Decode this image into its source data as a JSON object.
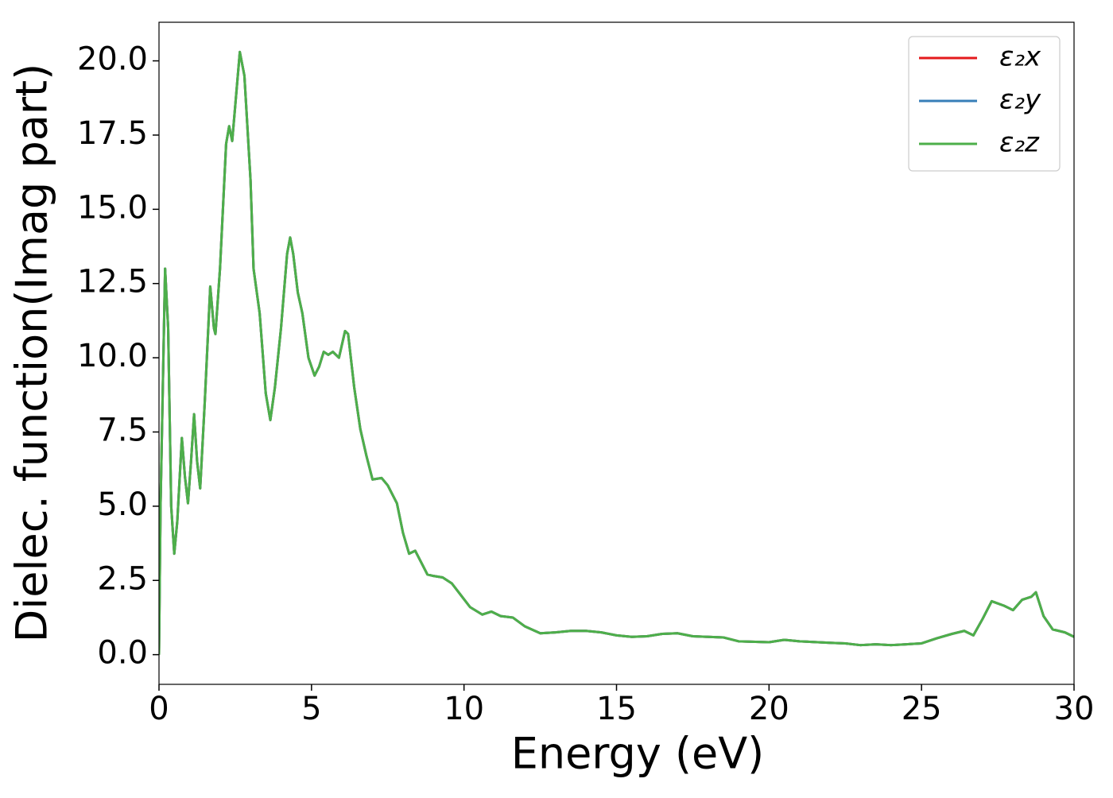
{
  "chart_data": {
    "type": "line",
    "xlabel": "Energy (eV)",
    "ylabel": "Dielec. function(Imag part)",
    "x": [
      0,
      0.05,
      0.2,
      0.3,
      0.4,
      0.5,
      0.6,
      0.75,
      0.85,
      0.95,
      1.05,
      1.15,
      1.25,
      1.35,
      1.5,
      1.68,
      1.8,
      1.85,
      2.0,
      2.2,
      2.3,
      2.4,
      2.5,
      2.65,
      2.8,
      3.0,
      3.1,
      3.3,
      3.5,
      3.65,
      3.8,
      4.0,
      4.2,
      4.3,
      4.4,
      4.55,
      4.7,
      4.9,
      5.1,
      5.25,
      5.4,
      5.55,
      5.7,
      5.9,
      6.1,
      6.2,
      6.4,
      6.6,
      6.8,
      7.0,
      7.3,
      7.5,
      7.8,
      8.0,
      8.2,
      8.4,
      8.6,
      8.8,
      9.0,
      9.3,
      9.6,
      9.9,
      10.2,
      10.6,
      10.9,
      11.2,
      11.6,
      12.0,
      12.5,
      13.0,
      13.5,
      14.0,
      14.5,
      15.0,
      15.5,
      16.0,
      16.5,
      17.0,
      17.5,
      18.0,
      18.5,
      19.0,
      20.0,
      20.5,
      21.0,
      22.0,
      22.5,
      23.0,
      23.5,
      24.0,
      24.5,
      25.0,
      25.5,
      26.0,
      26.4,
      26.7,
      27.0,
      27.3,
      27.7,
      28.0,
      28.3,
      28.6,
      28.75,
      29.0,
      29.3,
      29.7,
      30.0
    ],
    "series": [
      {
        "name": "ε₂x",
        "color": "#e41a1c",
        "values": [
          0,
          5,
          13.0,
          11,
          5,
          3.4,
          4.5,
          7.3,
          6,
          5.1,
          6.5,
          8.1,
          6.5,
          5.6,
          8.5,
          12.4,
          11,
          10.8,
          13,
          17.2,
          17.8,
          17.3,
          18.5,
          20.3,
          19.5,
          16,
          13,
          11.5,
          8.8,
          7.9,
          9,
          11,
          13.5,
          14.05,
          13.5,
          12.2,
          11.5,
          10.0,
          9.4,
          9.7,
          10.2,
          10.1,
          10.2,
          10.0,
          10.9,
          10.8,
          9.0,
          7.6,
          6.7,
          5.9,
          5.95,
          5.7,
          5.1,
          4.1,
          3.4,
          3.5,
          3.1,
          2.7,
          2.65,
          2.6,
          2.4,
          2.0,
          1.6,
          1.35,
          1.45,
          1.3,
          1.25,
          0.95,
          0.72,
          0.75,
          0.8,
          0.8,
          0.75,
          0.65,
          0.6,
          0.62,
          0.7,
          0.72,
          0.62,
          0.6,
          0.58,
          0.45,
          0.42,
          0.5,
          0.45,
          0.4,
          0.38,
          0.32,
          0.35,
          0.32,
          0.35,
          0.38,
          0.55,
          0.7,
          0.8,
          0.65,
          1.2,
          1.8,
          1.65,
          1.5,
          1.85,
          1.95,
          2.1,
          1.3,
          0.85,
          0.75,
          0.6
        ]
      },
      {
        "name": "ε₂y",
        "color": "#377eb8",
        "values": [
          0,
          5,
          13.0,
          11,
          5,
          3.4,
          4.5,
          7.3,
          6,
          5.1,
          6.5,
          8.1,
          6.5,
          5.6,
          8.5,
          12.4,
          11,
          10.8,
          13,
          17.2,
          17.8,
          17.3,
          18.5,
          20.3,
          19.5,
          16,
          13,
          11.5,
          8.8,
          7.9,
          9,
          11,
          13.5,
          14.05,
          13.5,
          12.2,
          11.5,
          10.0,
          9.4,
          9.7,
          10.2,
          10.1,
          10.2,
          10.0,
          10.9,
          10.8,
          9.0,
          7.6,
          6.7,
          5.9,
          5.95,
          5.7,
          5.1,
          4.1,
          3.4,
          3.5,
          3.1,
          2.7,
          2.65,
          2.6,
          2.4,
          2.0,
          1.6,
          1.35,
          1.45,
          1.3,
          1.25,
          0.95,
          0.72,
          0.75,
          0.8,
          0.8,
          0.75,
          0.65,
          0.6,
          0.62,
          0.7,
          0.72,
          0.62,
          0.6,
          0.58,
          0.45,
          0.42,
          0.5,
          0.45,
          0.4,
          0.38,
          0.32,
          0.35,
          0.32,
          0.35,
          0.38,
          0.55,
          0.7,
          0.8,
          0.65,
          1.2,
          1.8,
          1.65,
          1.5,
          1.85,
          1.95,
          2.1,
          1.3,
          0.85,
          0.75,
          0.6
        ]
      },
      {
        "name": "ε₂z",
        "color": "#4daf4a",
        "values": [
          0,
          5,
          13.0,
          11,
          5,
          3.4,
          4.5,
          7.3,
          6,
          5.1,
          6.5,
          8.1,
          6.5,
          5.6,
          8.5,
          12.4,
          11,
          10.8,
          13,
          17.2,
          17.8,
          17.3,
          18.5,
          20.3,
          19.5,
          16,
          13,
          11.5,
          8.8,
          7.9,
          9,
          11,
          13.5,
          14.05,
          13.5,
          12.2,
          11.5,
          10.0,
          9.4,
          9.7,
          10.2,
          10.1,
          10.2,
          10.0,
          10.9,
          10.8,
          9.0,
          7.6,
          6.7,
          5.9,
          5.95,
          5.7,
          5.1,
          4.1,
          3.4,
          3.5,
          3.1,
          2.7,
          2.65,
          2.6,
          2.4,
          2.0,
          1.6,
          1.35,
          1.45,
          1.3,
          1.25,
          0.95,
          0.72,
          0.75,
          0.8,
          0.8,
          0.75,
          0.65,
          0.6,
          0.62,
          0.7,
          0.72,
          0.62,
          0.6,
          0.58,
          0.45,
          0.42,
          0.5,
          0.45,
          0.4,
          0.38,
          0.32,
          0.35,
          0.32,
          0.35,
          0.38,
          0.55,
          0.7,
          0.8,
          0.65,
          1.2,
          1.8,
          1.65,
          1.5,
          1.85,
          1.95,
          2.1,
          1.3,
          0.85,
          0.75,
          0.6
        ]
      }
    ],
    "xlim": [
      0,
      30
    ],
    "xticks": [
      0,
      5,
      10,
      15,
      20,
      25,
      30
    ],
    "ylim": [
      -1.0,
      21.3
    ],
    "yticks": [
      {
        "value": 0,
        "label": "0.0"
      },
      2.5,
      {
        "value": 5,
        "label": "5.0"
      },
      7.5,
      {
        "value": 10,
        "label": "10.0"
      },
      12.5,
      {
        "value": 15,
        "label": "15.0"
      },
      17.5,
      {
        "value": 20,
        "label": "20.0"
      }
    ],
    "legend": "upper right",
    "grid": false
  }
}
